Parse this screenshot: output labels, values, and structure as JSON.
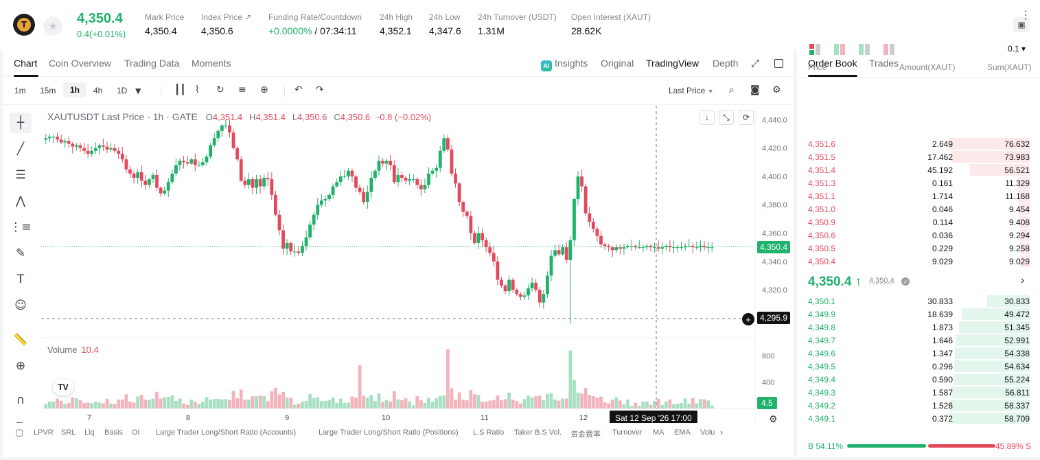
{
  "header": {
    "last_price": "4,350.4",
    "change": "0.4(+0.01%)",
    "stats": [
      {
        "label": "Mark Price",
        "value": "4,350.4"
      },
      {
        "label": "Index Price ↗",
        "value": "4,350.6"
      },
      {
        "label": "Funding Rate/Countdown",
        "value_green": "+0.0000%",
        "value": " / 07:34:11"
      },
      {
        "label": "24h High",
        "value": "4,352.1"
      },
      {
        "label": "24h Low",
        "value": "4,347.6"
      },
      {
        "label": "24h Turnover (USDT)",
        "value": "1.31M"
      },
      {
        "label": "Open Interest (XAUT)",
        "value": "28.62K"
      }
    ]
  },
  "chart_tabs": {
    "left": [
      "Chart",
      "Coin Overview",
      "Trading Data",
      "Moments"
    ],
    "right": [
      "Insights",
      "Original",
      "TradingView",
      "Depth"
    ],
    "ai_label": "AI"
  },
  "toolbar": {
    "timeframes": [
      "1m",
      "15m",
      "1h",
      "4h",
      "1D"
    ],
    "active_timeframe": "1h",
    "price_type": "Last Price"
  },
  "chart": {
    "symbol_line": "XAUTUSDT Last Price · 1h · GATE",
    "ohlc": [
      {
        "k": "O",
        "v": "4,351.4"
      },
      {
        "k": "H",
        "v": "4,351.4"
      },
      {
        "k": "L",
        "v": "4,350.6"
      },
      {
        "k": "C",
        "v": "4,350.6"
      }
    ],
    "change": "-0.8 (−0.02%)",
    "volume_label": "Volume",
    "volume_value": "10.4",
    "current_price_tag": "4,350.4",
    "cursor_price_tag": "4,295.9",
    "volume_tag": "4.5",
    "time_badge": "Sat 12 Sep '26   17:00",
    "y_ticks": [
      "4,440.0",
      "4,420.0",
      "4,400.0",
      "4,380.0",
      "4,360.0",
      "4,340.0",
      "4,320.0",
      "4,300.0"
    ],
    "vol_ticks": [
      "800",
      "400"
    ],
    "x_ticks": [
      "7",
      "8",
      "9",
      "10",
      "11",
      "12"
    ],
    "colors": {
      "up": "#20b26c",
      "down": "#e24a5c"
    }
  },
  "chart_data": {
    "type": "candlestick",
    "series_note_visible": false,
    "x": [
      "7",
      "8",
      "9",
      "10",
      "11",
      "12"
    ],
    "ylim": [
      4290,
      4446
    ],
    "volume_ylim": [
      0,
      1000
    ],
    "candles_close": [
      4427,
      4428,
      4428,
      4426,
      4424,
      4425,
      4423,
      4421,
      4422,
      4420,
      4418,
      4416,
      4418,
      4420,
      4422,
      4421,
      4419,
      4420,
      4418,
      4416,
      4412,
      4405,
      4402,
      4399,
      4403,
      4397,
      4394,
      4398,
      4401,
      4392,
      4388,
      4390,
      4396,
      4402,
      4408,
      4411,
      4410,
      4409,
      4412,
      4408,
      4408,
      4410,
      4414,
      4422,
      4427,
      4432,
      4436,
      4436,
      4431,
      4420,
      4412,
      4397,
      4394,
      4398,
      4392,
      4398,
      4393,
      4399,
      4398,
      4387,
      4373,
      4362,
      4349,
      4353,
      4347,
      4347,
      4346,
      4351,
      4357,
      4366,
      4373,
      4380,
      4383,
      4384,
      4387,
      4393,
      4396,
      4400,
      4400,
      4404,
      4400,
      4392,
      4389,
      4382,
      4389,
      4399,
      4404,
      4411,
      4409,
      4411,
      4408,
      4396,
      4401,
      4399,
      4397,
      4398,
      4398,
      4394,
      4391,
      4394,
      4402,
      4404,
      4406,
      4418,
      4427,
      4419,
      4402,
      4395,
      4382,
      4375,
      4372,
      4360,
      4353,
      4360,
      4355,
      4350,
      4346,
      4340,
      4327,
      4323,
      4319,
      4327,
      4320,
      4317,
      4315,
      4316,
      4321,
      4325,
      4320,
      4311,
      4317,
      4330,
      4344,
      4348,
      4345,
      4350,
      4341,
      4355,
      4384,
      4400,
      4393,
      4374,
      4368,
      4363,
      4358,
      4352,
      4351,
      4350,
      4348,
      4350,
      4349,
      4350,
      4351,
      4351,
      4350,
      4350,
      4350,
      4351,
      4350,
      4350,
      4349,
      4350,
      4351,
      4350,
      4350,
      4350,
      4350,
      4351,
      4351,
      4350,
      4350,
      4351,
      4350,
      4350,
      4350
    ]
  },
  "indicators": [
    "LPVR",
    "SRL",
    "Liq",
    "Basis",
    "OI",
    "Large Trader Long/Short Ratio (Accounts)",
    "Large Trader Long/Short Ratio (Positions)",
    "L.S Ratio",
    "Taker B.S Vol.",
    "资金费率",
    "Turnover",
    "MA",
    "EMA",
    "Volu"
  ],
  "orderbook": {
    "tabs": [
      "Order Book",
      "Trades"
    ],
    "precision": "0.1 ▾",
    "headers": [
      "Price",
      "Amount(XAUT)",
      "Sum(XAUT)"
    ],
    "asks": [
      {
        "price": "4,351.6",
        "amount": "2.649",
        "sum": "76.632",
        "depth": 1.0
      },
      {
        "price": "4,351.5",
        "amount": "17.462",
        "sum": "73.983",
        "depth": 0.965
      },
      {
        "price": "4,351.4",
        "amount": "45.192",
        "sum": "56.521",
        "depth": 0.738
      },
      {
        "price": "4,351.3",
        "amount": "0.161",
        "sum": "11.329",
        "depth": 0.148
      },
      {
        "price": "4,351.1",
        "amount": "1.714",
        "sum": "11.168",
        "depth": 0.146
      },
      {
        "price": "4,351.0",
        "amount": "0.046",
        "sum": "9.454",
        "depth": 0.123
      },
      {
        "price": "4,350.9",
        "amount": "0.114",
        "sum": "9.408",
        "depth": 0.123
      },
      {
        "price": "4,350.6",
        "amount": "0.036",
        "sum": "9.294",
        "depth": 0.121
      },
      {
        "price": "4,350.5",
        "amount": "0.229",
        "sum": "9.258",
        "depth": 0.121
      },
      {
        "price": "4,350.4",
        "amount": "9.029",
        "sum": "9.029",
        "depth": 0.118
      }
    ],
    "mid_price": "4,350.4 ↑",
    "mark_price": "4,350.4",
    "bids": [
      {
        "price": "4,350.1",
        "amount": "30.833",
        "sum": "30.833",
        "depth": 0.525
      },
      {
        "price": "4,349.9",
        "amount": "18.639",
        "sum": "49.472",
        "depth": 0.843
      },
      {
        "price": "4,349.8",
        "amount": "1.873",
        "sum": "51.345",
        "depth": 0.875
      },
      {
        "price": "4,349.7",
        "amount": "1.646",
        "sum": "52.991",
        "depth": 0.903
      },
      {
        "price": "4,349.6",
        "amount": "1.347",
        "sum": "54.338",
        "depth": 0.926
      },
      {
        "price": "4,349.5",
        "amount": "0.296",
        "sum": "54.634",
        "depth": 0.931
      },
      {
        "price": "4,349.4",
        "amount": "0.590",
        "sum": "55.224",
        "depth": 0.941
      },
      {
        "price": "4,349.3",
        "amount": "1.587",
        "sum": "56.811",
        "depth": 0.968
      },
      {
        "price": "4,349.2",
        "amount": "1.526",
        "sum": "58.337",
        "depth": 0.994
      },
      {
        "price": "4,349.1",
        "amount": "0.372",
        "sum": "58.709",
        "depth": 1.0
      }
    ],
    "buy_ratio": "B 54.11%",
    "sell_ratio": "45.89% S",
    "buy_fraction": 0.5411
  }
}
